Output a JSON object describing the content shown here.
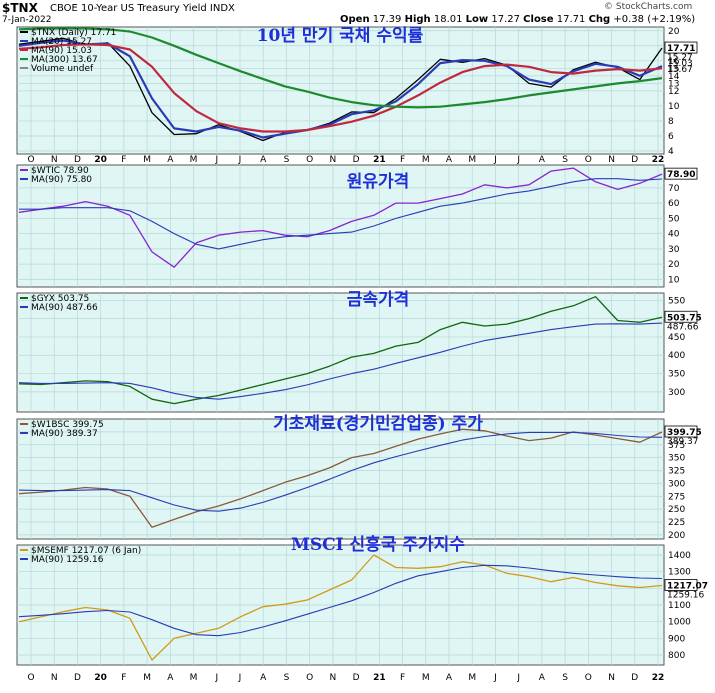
{
  "header": {
    "symbol": "$TNX",
    "description": "CBOE 10-Year US Treasury Yield INDX",
    "date": "7-Jan-2022",
    "open_label": "Open",
    "open": "17.39",
    "high_label": "High",
    "high": "18.01",
    "low_label": "Low",
    "low": "17.27",
    "close_label": "Close",
    "close": "17.71",
    "chg_label": "Chg",
    "chg": "+0.38 (+2.19%)",
    "watermark": "© StockCharts.com"
  },
  "x_axis": {
    "months": [
      "O",
      "N",
      "D",
      "20",
      "F",
      "M",
      "A",
      "M",
      "J",
      "J",
      "A",
      "S",
      "O",
      "N",
      "D",
      "21",
      "F",
      "M",
      "A",
      "M",
      "J",
      "J",
      "A",
      "S",
      "O",
      "N",
      "D",
      "22"
    ],
    "year_marks": [
      "20",
      "21",
      "22"
    ]
  },
  "colors": {
    "panel_bg": "#dff6f4",
    "grid": "#b7d7d6",
    "tnx": "#000000",
    "wtic": "#8a22d0",
    "gyx": "#116611",
    "w1bsc": "#8a5a3a",
    "msemf": "#d39a1a",
    "ma20": "#2a3bb5",
    "ma90": "#c0283f",
    "ma300": "#1e8a2e",
    "annotation": "#1e2fd6"
  },
  "chart_data": [
    {
      "type": "line",
      "ylabel": "",
      "legend": [
        "$TNX (Daily) 17.71",
        "MA(20) 15.27",
        "MA(90) 15.03",
        "MA(300) 13.67",
        "Volume undef"
      ],
      "annotation": "10년 만기 국채 수익률",
      "yticks": [
        4,
        6,
        8,
        10,
        12,
        13,
        14,
        15,
        16,
        18,
        20
      ],
      "ylim": [
        3.6,
        20.5
      ],
      "last_value_label": "17.71",
      "ma_labels": [
        "15.27",
        "15.03",
        "13.67"
      ],
      "series": [
        {
          "name": "$TNX",
          "values": [
            18.2,
            18.6,
            19.0,
            18.1,
            18.4,
            15.3,
            9.1,
            6.2,
            6.3,
            7.5,
            6.6,
            5.4,
            6.5,
            6.8,
            7.7,
            9.2,
            9.1,
            11.0,
            13.5,
            16.2,
            15.8,
            16.3,
            15.4,
            13.0,
            12.5,
            14.8,
            15.8,
            15.1,
            13.5,
            17.7
          ]
        },
        {
          "name": "MA(20)",
          "values": [
            18.0,
            18.4,
            18.7,
            18.2,
            18.3,
            16.6,
            11.0,
            7.0,
            6.6,
            7.2,
            6.7,
            5.8,
            6.3,
            6.8,
            7.5,
            8.9,
            9.4,
            10.6,
            12.9,
            15.7,
            16.1,
            16.0,
            15.3,
            13.5,
            12.9,
            14.6,
            15.6,
            15.2,
            14.0,
            15.3
          ]
        },
        {
          "name": "MA(90)",
          "values": [
            17.6,
            17.8,
            18.1,
            18.2,
            18.1,
            17.5,
            15.2,
            11.7,
            9.3,
            7.7,
            7.0,
            6.6,
            6.6,
            6.8,
            7.3,
            7.9,
            8.7,
            9.9,
            11.4,
            13.1,
            14.5,
            15.3,
            15.5,
            15.2,
            14.5,
            14.3,
            14.7,
            14.9,
            14.7,
            15.0
          ]
        },
        {
          "name": "MA(300)",
          "values": [
            20.2,
            20.3,
            20.3,
            20.3,
            20.2,
            19.9,
            19.1,
            18.0,
            16.8,
            15.7,
            14.6,
            13.6,
            12.6,
            11.9,
            11.1,
            10.5,
            10.1,
            9.9,
            9.8,
            9.9,
            10.2,
            10.5,
            10.9,
            11.4,
            11.8,
            12.2,
            12.6,
            13.0,
            13.3,
            13.7
          ]
        }
      ]
    },
    {
      "type": "line",
      "ylabel": "",
      "legend": [
        "$WTIC 78.90",
        "MA(90) 75.80"
      ],
      "annotation": "원유가격",
      "yticks": [
        10,
        20,
        30,
        40,
        50,
        60,
        70
      ],
      "ylim": [
        5,
        85
      ],
      "last_value_label": "78.90",
      "ma_labels": [],
      "series": [
        {
          "name": "$WTIC",
          "values": [
            54,
            56,
            58,
            61,
            58,
            52,
            28,
            18,
            34,
            39,
            41,
            42,
            39,
            38,
            42,
            48,
            52,
            60,
            60,
            63,
            66,
            72,
            70,
            72,
            81,
            83,
            74,
            69,
            73,
            79
          ]
        },
        {
          "name": "MA(90)",
          "values": [
            56,
            56,
            57,
            57,
            57,
            55,
            48,
            40,
            33,
            30,
            33,
            36,
            38,
            39,
            40,
            41,
            45,
            50,
            54,
            58,
            60,
            63,
            66,
            68,
            71,
            74,
            76,
            76,
            75,
            75.8
          ]
        }
      ]
    },
    {
      "type": "line",
      "ylabel": "",
      "legend": [
        "$GYX 503.75",
        "MA(90) 487.66"
      ],
      "annotation": "금속가격",
      "yticks": [
        300,
        350,
        400,
        450,
        500,
        550
      ],
      "ylim": [
        245,
        570
      ],
      "last_value_label": "503.75",
      "ma_labels": [
        "487.66"
      ],
      "series": [
        {
          "name": "$GYX",
          "values": [
            322,
            320,
            325,
            330,
            328,
            315,
            280,
            268,
            280,
            290,
            305,
            320,
            335,
            350,
            370,
            395,
            405,
            425,
            435,
            470,
            490,
            480,
            485,
            500,
            520,
            535,
            560,
            495,
            490,
            503.75
          ]
        },
        {
          "name": "MA(90)",
          "values": [
            325,
            323,
            323,
            324,
            325,
            323,
            311,
            296,
            285,
            280,
            287,
            296,
            306,
            319,
            335,
            350,
            362,
            378,
            393,
            408,
            425,
            440,
            450,
            460,
            470,
            478,
            485,
            486,
            485,
            487.7
          ]
        }
      ]
    },
    {
      "type": "line",
      "ylabel": "",
      "legend": [
        "$W1BSC 399.75",
        "MA(90) 389.37"
      ],
      "annotation": "기초재료(경기민감업종) 주가",
      "yticks": [
        200,
        225,
        250,
        275,
        300,
        325,
        350,
        375,
        400
      ],
      "ylim": [
        192,
        425
      ],
      "last_value_label": "399.75",
      "ma_labels": [
        "389.37"
      ],
      "series": [
        {
          "name": "$W1BSC",
          "values": [
            280,
            283,
            287,
            292,
            289,
            275,
            215,
            230,
            245,
            256,
            270,
            286,
            302,
            315,
            330,
            350,
            358,
            372,
            386,
            396,
            405,
            402,
            392,
            383,
            388,
            400,
            394,
            387,
            380,
            399.75
          ]
        },
        {
          "name": "MA(90)",
          "values": [
            287,
            286,
            286,
            287,
            288,
            286,
            272,
            258,
            248,
            246,
            252,
            263,
            277,
            292,
            308,
            325,
            340,
            352,
            363,
            374,
            384,
            391,
            396,
            399,
            399,
            399,
            397,
            393,
            390,
            389.4
          ]
        }
      ]
    },
    {
      "type": "line",
      "ylabel": "",
      "legend": [
        "$MSEMF 1217.07 (6 Jan)",
        "MA(90) 1259.16"
      ],
      "annotation": "MSCI 신흥국 주가지수",
      "yticks": [
        800,
        900,
        1000,
        1100,
        1200,
        1300,
        1400
      ],
      "ylim": [
        740,
        1460
      ],
      "last_value_label": "1217.07",
      "ma_labels": [
        "1259.16"
      ],
      "series": [
        {
          "name": "$MSEMF",
          "values": [
            1000,
            1030,
            1060,
            1085,
            1070,
            1020,
            770,
            900,
            930,
            960,
            1030,
            1090,
            1105,
            1130,
            1190,
            1250,
            1400,
            1325,
            1320,
            1330,
            1360,
            1340,
            1290,
            1270,
            1240,
            1265,
            1235,
            1215,
            1205,
            1217
          ]
        },
        {
          "name": "MA(90)",
          "values": [
            1030,
            1038,
            1048,
            1060,
            1067,
            1058,
            1012,
            960,
            922,
            916,
            935,
            968,
            1005,
            1045,
            1085,
            1125,
            1175,
            1230,
            1275,
            1300,
            1325,
            1338,
            1335,
            1322,
            1305,
            1290,
            1280,
            1270,
            1262,
            1259
          ]
        }
      ]
    }
  ]
}
